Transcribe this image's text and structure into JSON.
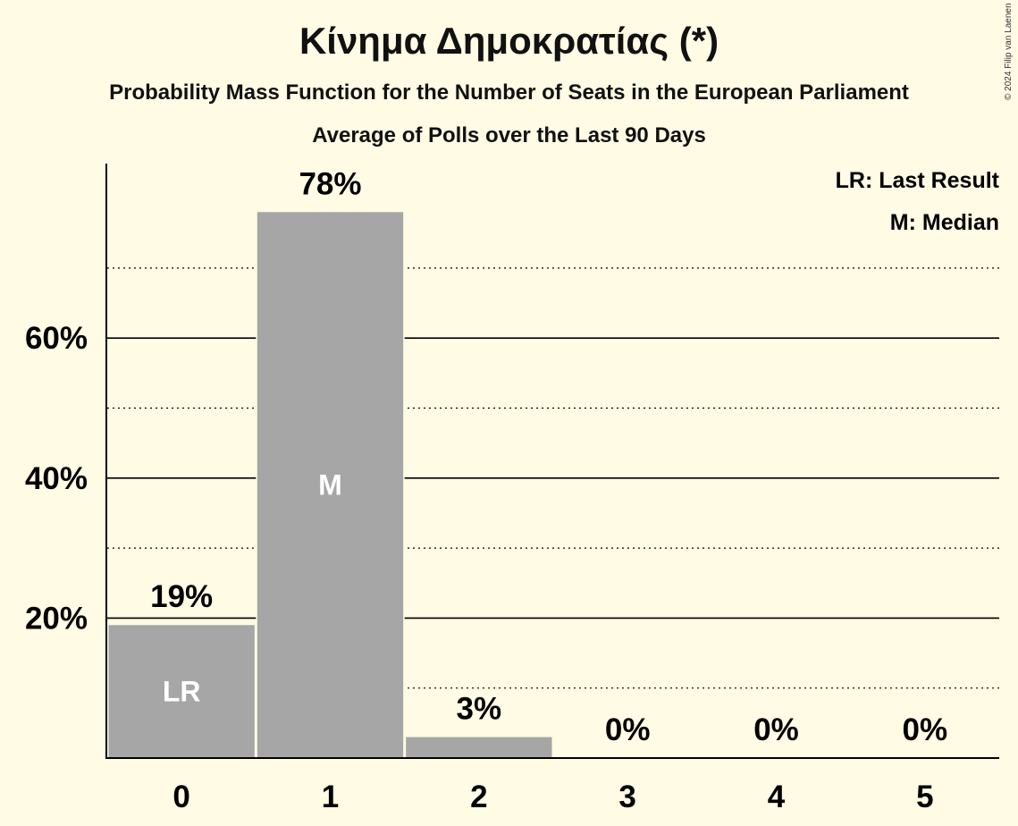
{
  "header": {
    "title": "Κίνημα Δημοκρατίας (*)",
    "subtitle": "Probability Mass Function for the Number of Seats in the European Parliament",
    "subtitle2": "Average of Polls over the Last 90 Days",
    "copyright": "© 2024 Filip van Laenen"
  },
  "legend": {
    "last_result": "LR: Last Result",
    "median": "M: Median"
  },
  "chart_data": {
    "type": "bar",
    "title": "Κίνημα Δημοκρατίας (*)",
    "categories": [
      "0",
      "1",
      "2",
      "3",
      "4",
      "5"
    ],
    "values": [
      19,
      78,
      3,
      0,
      0,
      0
    ],
    "value_labels": [
      "19%",
      "78%",
      "3%",
      "0%",
      "0%",
      "0%"
    ],
    "bar_markers": [
      "LR",
      "M",
      "",
      "",
      "",
      ""
    ],
    "y_ticks": [
      20,
      40,
      60
    ],
    "y_tick_labels": [
      "20%",
      "40%",
      "60%"
    ],
    "y_minor_gridlines": [
      10,
      30,
      50,
      70
    ],
    "ylim": [
      0,
      85
    ],
    "grid": true,
    "legend_placement": "top-right",
    "colors": {
      "bar": "#a6a6a6",
      "background": "#fffbe4",
      "bar_marker_text": "#ffffff"
    }
  }
}
